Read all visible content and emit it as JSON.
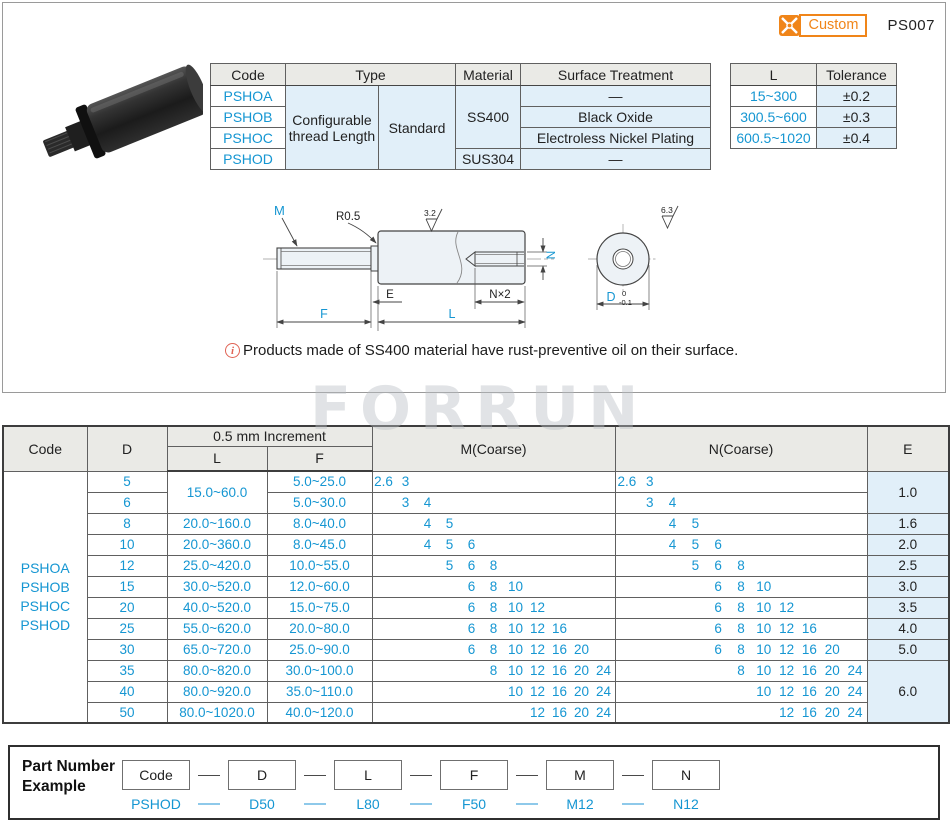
{
  "header": {
    "custom_label": "Custom",
    "page_code": "PS007"
  },
  "spec_table": {
    "headers": {
      "code": "Code",
      "type": "Type",
      "material": "Material",
      "surface": "Surface Treatment"
    },
    "codes": [
      "PSHOA",
      "PSHOB",
      "PSHOC",
      "PSHOD"
    ],
    "type_thread": "Configurable thread Length",
    "type_standard": "Standard",
    "material_ss400": "SS400",
    "material_sus304": "SUS304",
    "surface_treatments": [
      "—",
      "Black Oxide",
      "Electroless Nickel Plating",
      "—"
    ]
  },
  "tolerance_table": {
    "headers": {
      "l": "L",
      "tolerance": "Tolerance"
    },
    "rows": [
      {
        "l": "15~300",
        "tol": "±0.2"
      },
      {
        "l": "300.5~600",
        "tol": "±0.3"
      },
      {
        "l": "600.5~1020",
        "tol": "±0.4"
      }
    ]
  },
  "drawing": {
    "labels": {
      "m": "M",
      "radius": "R0.5",
      "rough_body": "3.2",
      "rough_end": "6.3",
      "n_side": "N",
      "e": "E",
      "nx2": "N×2",
      "f": "F",
      "l": "L",
      "d": "D",
      "d_tol_upper": "0",
      "d_tol_lower": "-0.1"
    },
    "note": "Products made of SS400 material have rust-preventive oil on their surface."
  },
  "watermark": "FORRUN",
  "main_table": {
    "headers": {
      "code": "Code",
      "d": "D",
      "increment": "0.5 mm Increment",
      "l": "L",
      "f": "F",
      "m": "M(Coarse)",
      "n": "N(Coarse)",
      "e": "E"
    },
    "code_lines": [
      "PSHOA",
      "PSHOB",
      "PSHOC",
      "PSHOD"
    ],
    "thread_slots": [
      "2.6",
      "3",
      "4",
      "5",
      "6",
      "8",
      "10",
      "12",
      "16",
      "20",
      "24"
    ],
    "rows": [
      {
        "d": "5",
        "l": "15.0~60.0",
        "l_span": 2,
        "f": "5.0~25.0",
        "threads": [
          "2.6",
          "3"
        ],
        "e": "1.0",
        "e_span": 2
      },
      {
        "d": "6",
        "f": "5.0~30.0",
        "threads": [
          "3",
          "4"
        ]
      },
      {
        "d": "8",
        "l": "20.0~160.0",
        "f": "8.0~40.0",
        "threads": [
          "4",
          "5"
        ],
        "e": "1.6"
      },
      {
        "d": "10",
        "l": "20.0~360.0",
        "f": "8.0~45.0",
        "threads": [
          "4",
          "5",
          "6"
        ],
        "e": "2.0"
      },
      {
        "d": "12",
        "l": "25.0~420.0",
        "f": "10.0~55.0",
        "threads": [
          "5",
          "6",
          "8"
        ],
        "e": "2.5"
      },
      {
        "d": "15",
        "l": "30.0~520.0",
        "f": "12.0~60.0",
        "threads": [
          "6",
          "8",
          "10"
        ],
        "e": "3.0"
      },
      {
        "d": "20",
        "l": "40.0~520.0",
        "f": "15.0~75.0",
        "threads": [
          "6",
          "8",
          "10",
          "12"
        ],
        "e": "3.5"
      },
      {
        "d": "25",
        "l": "55.0~620.0",
        "f": "20.0~80.0",
        "threads": [
          "6",
          "8",
          "10",
          "12",
          "16"
        ],
        "e": "4.0"
      },
      {
        "d": "30",
        "l": "65.0~720.0",
        "f": "25.0~90.0",
        "threads": [
          "6",
          "8",
          "10",
          "12",
          "16",
          "20"
        ],
        "e": "5.0"
      },
      {
        "d": "35",
        "l": "80.0~820.0",
        "f": "30.0~100.0",
        "threads": [
          "8",
          "10",
          "12",
          "16",
          "20",
          "24"
        ],
        "e": "6.0",
        "e_span": 3
      },
      {
        "d": "40",
        "l": "80.0~920.0",
        "f": "35.0~110.0",
        "threads": [
          "10",
          "12",
          "16",
          "20",
          "24"
        ]
      },
      {
        "d": "50",
        "l": "80.0~1020.0",
        "f": "40.0~120.0",
        "threads": [
          "12",
          "16",
          "20",
          "24"
        ]
      }
    ]
  },
  "part_number": {
    "label_line1": "Part Number",
    "label_line2": "Example",
    "boxes": [
      "Code",
      "D",
      "L",
      "F",
      "M",
      "N"
    ],
    "example": [
      "PSHOD",
      "D50",
      "L80",
      "F50",
      "M12",
      "N12"
    ]
  },
  "colors": {
    "accent_blue": "#1596d2",
    "orange": "#f08519",
    "light_blue": "#e1eff9",
    "header_gray": "#eaeae6"
  }
}
